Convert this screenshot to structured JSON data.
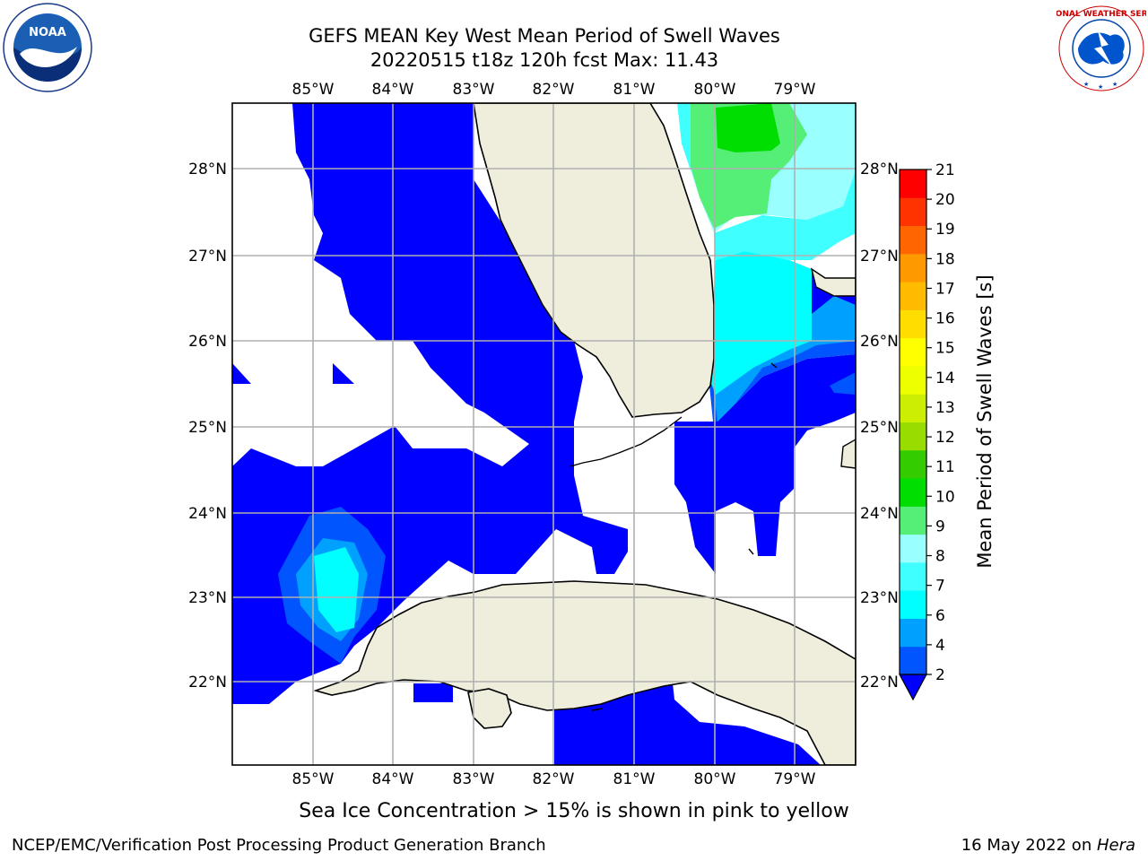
{
  "header": {
    "title_line1": "GEFS MEAN Key West Mean Period of Swell Waves",
    "title_line2": "20220515 t18z 120h fcst   Max: 11.43"
  },
  "logos": {
    "left_text": "NOAA",
    "right_text": "NATIONAL WEATHER SERVICE"
  },
  "map": {
    "lon_labels": [
      "85°W",
      "84°W",
      "83°W",
      "82°W",
      "81°W",
      "80°W",
      "79°W"
    ],
    "lat_labels": [
      "28°N",
      "27°N",
      "26°N",
      "25°N",
      "24°N",
      "23°N",
      "22°N"
    ],
    "colors": {
      "land": "#efeddc",
      "ocean_low": "#0000ff",
      "grid": "#b0b0b0"
    }
  },
  "colorbar": {
    "label": "Mean Period of Swell Waves [s]",
    "ticks": [
      "2",
      "4",
      "6",
      "7",
      "8",
      "9",
      "10",
      "11",
      "12",
      "13",
      "14",
      "15",
      "16",
      "17",
      "18",
      "19",
      "20",
      "21"
    ],
    "colors": [
      "#0055ff",
      "#00a0ff",
      "#00ffff",
      "#40ffff",
      "#99ffff",
      "#55ee77",
      "#00dd00",
      "#33cc00",
      "#99dd00",
      "#ccee00",
      "#eeff00",
      "#ffff00",
      "#ffdd00",
      "#ffbb00",
      "#ff9900",
      "#ff6600",
      "#ff3300",
      "#ff0000"
    ],
    "under_color": "#0000ff"
  },
  "footer": {
    "note": "Sea Ice Concentration > 15% is shown in pink to yellow",
    "left": "NCEP/EMC/Verification Post Processing Product Generation Branch",
    "right_date": "16 May 2022 on ",
    "right_host": "Hera"
  }
}
